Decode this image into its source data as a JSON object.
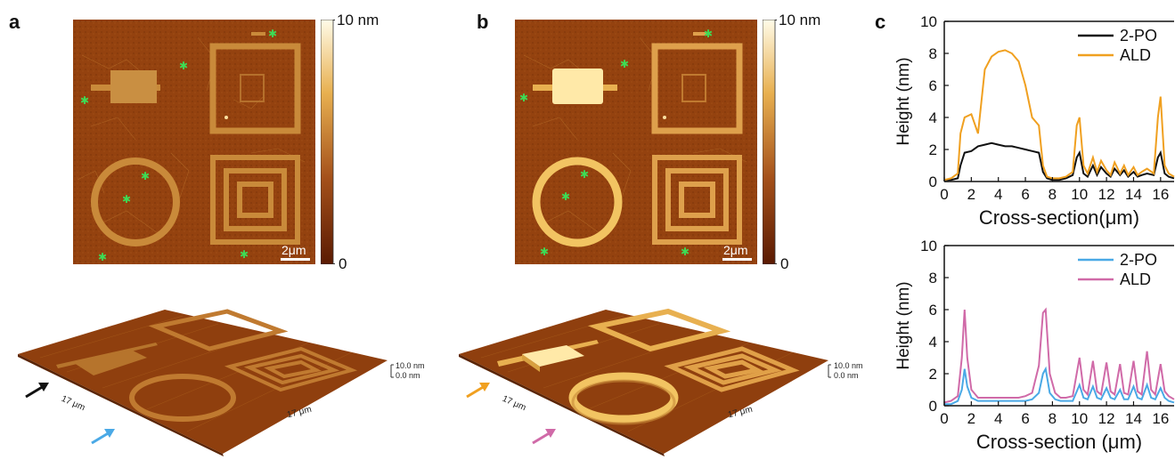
{
  "panels": {
    "a": {
      "letter": "a",
      "colorbar_max": "10 nm",
      "colorbar_min": "0",
      "scale_bar": "2μm",
      "z_top": "10.0 nm",
      "z_bottom": "0.0 nm",
      "dim_x": "17 μm",
      "dim_y": "17 μm"
    },
    "b": {
      "letter": "b",
      "colorbar_max": "10 nm",
      "colorbar_min": "0",
      "scale_bar": "2μm",
      "z_top": "10.0 nm",
      "z_bottom": "0.0 nm",
      "dim_x": "17 μm",
      "dim_y": "17 μm"
    },
    "c": {
      "letter": "c"
    }
  },
  "colors": {
    "afm_dark": "#8a3c0c",
    "afm_mid": "#b86a1c",
    "afm_bright": "#fff3b0",
    "star": "#3ddc55",
    "arrow_black": "#111111",
    "arrow_blue": "#4aa9e6",
    "arrow_orange": "#f0a020",
    "arrow_pink": "#d06aa8"
  },
  "chart_data": [
    {
      "type": "line",
      "xlabel": "Cross-section(μm)",
      "ylabel": "Height (nm)",
      "xlim": [
        0,
        17
      ],
      "ylim": [
        0,
        10
      ],
      "xticks": [
        0,
        2,
        4,
        6,
        8,
        10,
        12,
        14,
        16
      ],
      "yticks": [
        0,
        2,
        4,
        6,
        8,
        10
      ],
      "legend": "top-right",
      "series": [
        {
          "name": "2-PO",
          "color": "#111111",
          "x": [
            0,
            0.5,
            1.0,
            1.2,
            1.5,
            2.0,
            2.5,
            3.0,
            3.5,
            4.0,
            4.5,
            5.0,
            5.5,
            6.0,
            6.5,
            7.0,
            7.3,
            7.6,
            8.0,
            8.5,
            9.0,
            9.5,
            9.8,
            10.0,
            10.3,
            10.6,
            11.0,
            11.3,
            11.6,
            12.0,
            12.3,
            12.6,
            13.0,
            13.3,
            13.6,
            14.0,
            14.3,
            14.6,
            15.0,
            15.5,
            15.8,
            16.0,
            16.3,
            16.6,
            17.0
          ],
          "y": [
            0.1,
            0.1,
            0.2,
            1.0,
            1.8,
            1.9,
            2.2,
            2.3,
            2.4,
            2.3,
            2.2,
            2.2,
            2.1,
            2.0,
            1.9,
            1.8,
            0.6,
            0.2,
            0.1,
            0.1,
            0.2,
            0.4,
            1.5,
            1.8,
            0.5,
            0.3,
            1.0,
            0.4,
            0.9,
            0.5,
            0.3,
            0.8,
            0.4,
            0.7,
            0.3,
            0.6,
            0.3,
            0.4,
            0.5,
            0.4,
            1.5,
            1.8,
            0.5,
            0.3,
            0.2
          ]
        },
        {
          "name": "ALD",
          "color": "#f0a020",
          "x": [
            0,
            0.5,
            1.0,
            1.2,
            1.5,
            2.0,
            2.5,
            3.0,
            3.5,
            4.0,
            4.5,
            5.0,
            5.5,
            6.0,
            6.5,
            7.0,
            7.3,
            7.6,
            8.0,
            8.5,
            9.0,
            9.5,
            9.8,
            10.0,
            10.3,
            10.6,
            11.0,
            11.3,
            11.6,
            12.0,
            12.3,
            12.6,
            13.0,
            13.3,
            13.6,
            14.0,
            14.3,
            14.6,
            15.0,
            15.5,
            15.8,
            16.0,
            16.3,
            16.6,
            17.0
          ],
          "y": [
            0.1,
            0.2,
            0.5,
            3.0,
            4.0,
            4.2,
            3.0,
            7.0,
            7.8,
            8.1,
            8.2,
            8.0,
            7.5,
            6.0,
            4.0,
            3.5,
            1.0,
            0.3,
            0.2,
            0.2,
            0.3,
            0.6,
            3.5,
            4.0,
            1.0,
            0.5,
            1.5,
            0.6,
            1.3,
            0.7,
            0.4,
            1.2,
            0.5,
            1.0,
            0.4,
            0.9,
            0.4,
            0.6,
            0.8,
            0.5,
            4.0,
            5.3,
            1.0,
            0.5,
            0.3
          ]
        }
      ]
    },
    {
      "type": "line",
      "xlabel": "Cross-section (μm)",
      "ylabel": "Height (nm)",
      "xlim": [
        0,
        17
      ],
      "ylim": [
        0,
        10
      ],
      "xticks": [
        0,
        2,
        4,
        6,
        8,
        10,
        12,
        14,
        16
      ],
      "yticks": [
        0,
        2,
        4,
        6,
        8,
        10
      ],
      "legend": "top-right",
      "series": [
        {
          "name": "2-PO",
          "color": "#4aa9e6",
          "x": [
            0,
            0.5,
            1.0,
            1.3,
            1.5,
            1.7,
            2.0,
            2.5,
            3.0,
            3.5,
            4.0,
            4.5,
            5.0,
            5.5,
            6.0,
            6.5,
            7.0,
            7.3,
            7.5,
            7.8,
            8.2,
            8.6,
            9.0,
            9.5,
            10.0,
            10.3,
            10.6,
            11.0,
            11.3,
            11.6,
            12.0,
            12.3,
            12.6,
            13.0,
            13.3,
            13.6,
            14.0,
            14.3,
            14.6,
            15.0,
            15.3,
            15.6,
            16.0,
            16.3,
            16.6,
            17.0
          ],
          "y": [
            0.1,
            0.1,
            0.3,
            1.0,
            2.3,
            1.2,
            0.5,
            0.3,
            0.3,
            0.3,
            0.3,
            0.3,
            0.3,
            0.3,
            0.3,
            0.4,
            0.8,
            2.0,
            2.3,
            0.8,
            0.4,
            0.3,
            0.3,
            0.3,
            1.3,
            0.5,
            0.4,
            1.2,
            0.5,
            0.4,
            1.1,
            0.5,
            0.4,
            1.0,
            0.4,
            0.4,
            1.2,
            0.5,
            0.4,
            1.3,
            0.5,
            0.4,
            1.1,
            0.5,
            0.3,
            0.2
          ]
        },
        {
          "name": "ALD",
          "color": "#d06aa8",
          "x": [
            0,
            0.5,
            1.0,
            1.3,
            1.5,
            1.7,
            2.0,
            2.5,
            3.0,
            3.5,
            4.0,
            4.5,
            5.0,
            5.5,
            6.0,
            6.5,
            7.0,
            7.3,
            7.5,
            7.8,
            8.2,
            8.6,
            9.0,
            9.5,
            10.0,
            10.3,
            10.6,
            11.0,
            11.3,
            11.6,
            12.0,
            12.3,
            12.6,
            13.0,
            13.3,
            13.6,
            14.0,
            14.3,
            14.6,
            15.0,
            15.3,
            15.6,
            16.0,
            16.3,
            16.6,
            17.0
          ],
          "y": [
            0.2,
            0.3,
            0.6,
            3.0,
            6.0,
            3.0,
            1.0,
            0.5,
            0.5,
            0.5,
            0.5,
            0.5,
            0.5,
            0.5,
            0.6,
            0.8,
            2.5,
            5.8,
            6.0,
            2.0,
            0.8,
            0.5,
            0.5,
            0.6,
            3.0,
            1.0,
            0.7,
            2.8,
            0.9,
            0.7,
            2.7,
            0.9,
            0.7,
            2.6,
            0.8,
            0.7,
            2.8,
            0.9,
            0.7,
            3.4,
            1.0,
            0.7,
            2.6,
            0.9,
            0.6,
            0.4
          ]
        }
      ]
    }
  ]
}
